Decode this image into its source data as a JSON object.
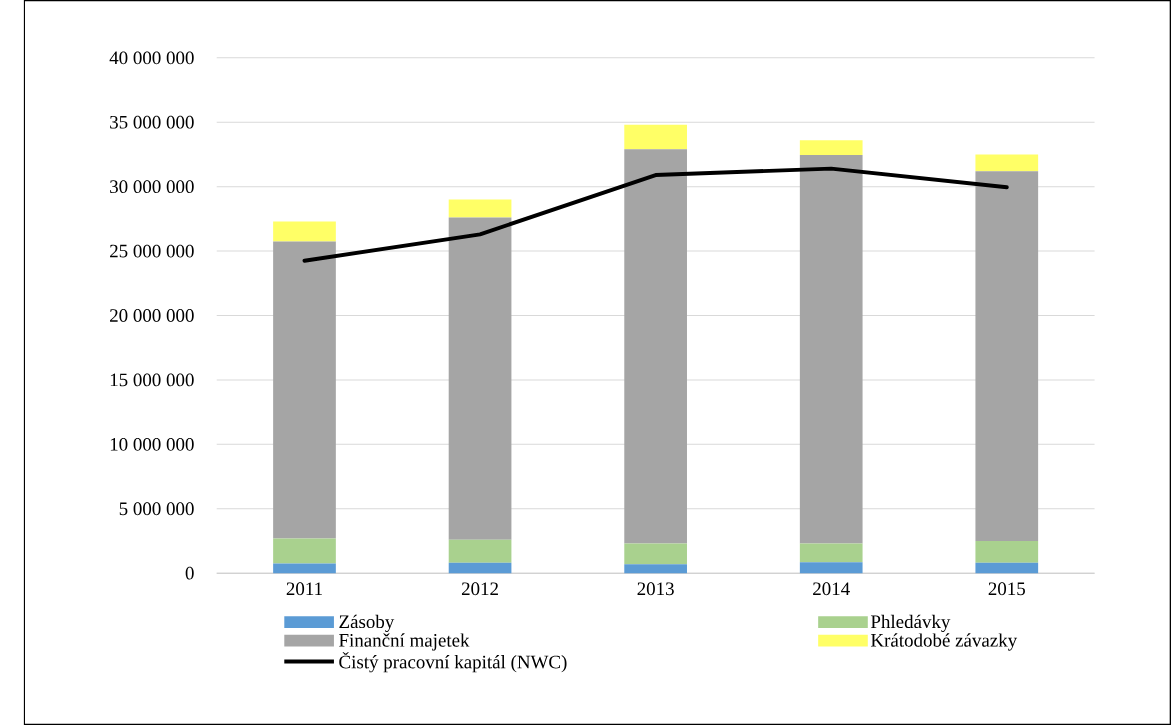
{
  "chart_data": {
    "type": "bar",
    "stacked": true,
    "categories": [
      "2011",
      "2012",
      "2013",
      "2014",
      "2015"
    ],
    "series": [
      {
        "name": "Zásoby",
        "color": "#5b9bd5",
        "values": [
          750000,
          800000,
          700000,
          850000,
          800000
        ]
      },
      {
        "name": "Phledávky",
        "color": "#a9d18e",
        "values": [
          1950000,
          1800000,
          1600000,
          1450000,
          1700000
        ]
      },
      {
        "name": "Finanční majetek",
        "color": "#a5a5a5",
        "values": [
          23050000,
          25000000,
          30600000,
          30150000,
          28700000
        ]
      },
      {
        "name": "Krátodobé závazky",
        "color": "#ffff66",
        "values": [
          1550000,
          1400000,
          1900000,
          1150000,
          1300000
        ]
      },
      {
        "name": "Čistý pracovní kapitál (NWC)",
        "type": "line",
        "color": "#000000",
        "values": [
          24250000,
          26300000,
          30900000,
          31400000,
          29950000
        ]
      }
    ],
    "ylim": [
      0,
      40000000
    ],
    "yticks": [
      {
        "value": 0,
        "label": "0"
      },
      {
        "value": 5000000,
        "label": "5 000 000"
      },
      {
        "value": 10000000,
        "label": "10 000 000"
      },
      {
        "value": 15000000,
        "label": "15 000 000"
      },
      {
        "value": 20000000,
        "label": "20 000 000"
      },
      {
        "value": 25000000,
        "label": "25 000 000"
      },
      {
        "value": 30000000,
        "label": "30 000 000"
      },
      {
        "value": 35000000,
        "label": "35 000 000"
      },
      {
        "value": 40000000,
        "label": "40 000 000"
      }
    ],
    "grid": "y",
    "legend": "bottom"
  }
}
